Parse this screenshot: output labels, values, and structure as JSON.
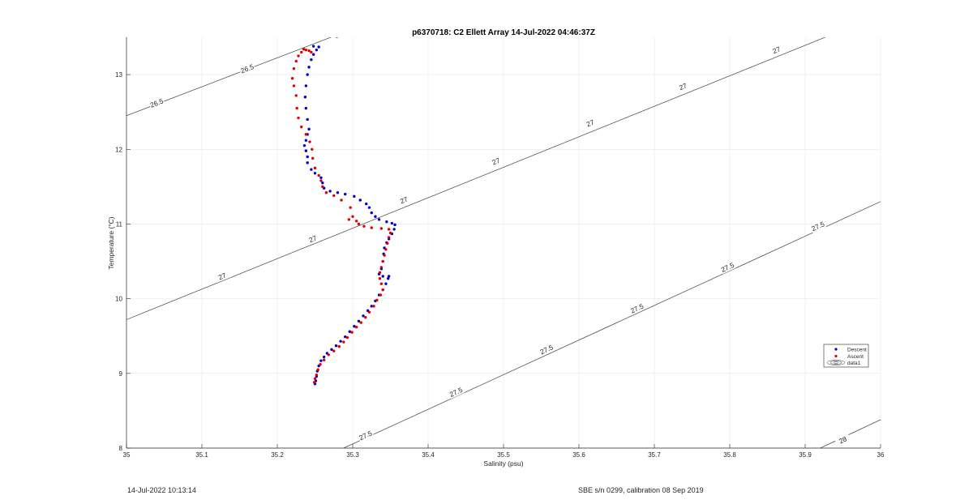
{
  "chart_data": {
    "type": "scatter",
    "title": "p6370718: C2 Ellett Array 14-Jul-2022 04:46:37Z",
    "xlabel": "Salinity (psu)",
    "ylabel": "Temperature (°C)",
    "xlim": [
      35,
      36
    ],
    "ylim": [
      8,
      13.5
    ],
    "grid": true,
    "x_ticks": [
      "35",
      "35.1",
      "35.2",
      "35.3",
      "35.4",
      "35.5",
      "35.6",
      "35.7",
      "35.8",
      "35.9",
      "36"
    ],
    "y_ticks": [
      "8",
      "9",
      "10",
      "11",
      "12",
      "13"
    ],
    "legend": {
      "placement": "right",
      "entries": [
        "Descent",
        "Ascent",
        "data1"
      ]
    },
    "contours": [
      {
        "level": 26.5,
        "points": [
          [
            35.0,
            12.45
          ],
          [
            35.4,
            14.0
          ]
        ],
        "labels": [
          [
            35.04,
            12.62
          ],
          [
            35.16,
            13.08
          ],
          [
            35.285,
            13.55
          ]
        ]
      },
      {
        "level": 27,
        "points": [
          [
            35.0,
            9.72
          ],
          [
            36.0,
            13.8
          ]
        ],
        "labels": [
          [
            35.127,
            10.3
          ],
          [
            35.247,
            10.8
          ],
          [
            35.368,
            11.32
          ],
          [
            35.49,
            11.84
          ],
          [
            35.615,
            12.35
          ],
          [
            35.738,
            12.84
          ],
          [
            35.862,
            13.33
          ],
          [
            35.985,
            13.75
          ]
        ]
      },
      {
        "level": 27.5,
        "points": [
          [
            35.288,
            8.0
          ],
          [
            36.0,
            11.3
          ]
        ],
        "labels": [
          [
            35.317,
            8.17
          ],
          [
            35.437,
            8.75
          ],
          [
            35.557,
            9.32
          ],
          [
            35.677,
            9.87
          ],
          [
            35.797,
            10.42
          ],
          [
            35.917,
            10.97
          ]
        ]
      },
      {
        "level": 28,
        "points": [
          [
            35.92,
            8.0
          ],
          [
            36.0,
            8.38
          ]
        ],
        "labels": [
          [
            35.95,
            8.11
          ]
        ]
      }
    ],
    "series": [
      {
        "name": "Descent",
        "color": "#0000cc",
        "points": [
          [
            35.25,
            8.86
          ],
          [
            35.251,
            8.9
          ],
          [
            35.252,
            8.96
          ],
          [
            35.253,
            9.03
          ],
          [
            35.255,
            9.1
          ],
          [
            35.258,
            9.17
          ],
          [
            35.262,
            9.22
          ],
          [
            35.266,
            9.27
          ],
          [
            35.272,
            9.32
          ],
          [
            35.278,
            9.37
          ],
          [
            35.284,
            9.43
          ],
          [
            35.29,
            9.49
          ],
          [
            35.296,
            9.56
          ],
          [
            35.302,
            9.63
          ],
          [
            35.308,
            9.7
          ],
          [
            35.314,
            9.77
          ],
          [
            35.32,
            9.84
          ],
          [
            35.325,
            9.9
          ],
          [
            35.33,
            9.97
          ],
          [
            35.335,
            10.05
          ],
          [
            35.34,
            10.12
          ],
          [
            35.344,
            10.2
          ],
          [
            35.347,
            10.27
          ],
          [
            35.348,
            10.3
          ],
          [
            35.34,
            10.3
          ],
          [
            35.335,
            10.33
          ],
          [
            35.338,
            10.4
          ],
          [
            35.34,
            10.5
          ],
          [
            35.341,
            10.6
          ],
          [
            35.342,
            10.68
          ],
          [
            35.345,
            10.75
          ],
          [
            35.348,
            10.8
          ],
          [
            35.352,
            10.87
          ],
          [
            35.355,
            10.93
          ],
          [
            35.356,
            10.99
          ],
          [
            35.352,
            11.01
          ],
          [
            35.345,
            11.03
          ],
          [
            35.335,
            11.06
          ],
          [
            35.33,
            11.1
          ],
          [
            35.325,
            11.15
          ],
          [
            35.322,
            11.22
          ],
          [
            35.318,
            11.27
          ],
          [
            35.31,
            11.32
          ],
          [
            35.302,
            11.37
          ],
          [
            35.29,
            11.4
          ],
          [
            35.28,
            11.42
          ],
          [
            35.27,
            11.44
          ],
          [
            35.262,
            11.48
          ],
          [
            35.26,
            11.55
          ],
          [
            35.258,
            11.62
          ],
          [
            35.25,
            11.68
          ],
          [
            35.245,
            11.73
          ],
          [
            35.24,
            11.82
          ],
          [
            35.24,
            11.9
          ],
          [
            35.238,
            11.98
          ],
          [
            35.236,
            12.05
          ],
          [
            35.238,
            12.12
          ],
          [
            35.24,
            12.2
          ],
          [
            35.242,
            12.27
          ],
          [
            35.24,
            12.4
          ],
          [
            35.238,
            12.55
          ],
          [
            35.237,
            12.7
          ],
          [
            35.238,
            12.85
          ],
          [
            35.24,
            13.0
          ],
          [
            35.242,
            13.1
          ],
          [
            35.245,
            13.2
          ],
          [
            35.248,
            13.27
          ],
          [
            35.252,
            13.33
          ],
          [
            35.255,
            13.37
          ],
          [
            35.248,
            13.38
          ]
        ]
      },
      {
        "name": "Ascent",
        "color": "#e00000",
        "points": [
          [
            35.249,
            8.88
          ],
          [
            35.25,
            8.93
          ],
          [
            35.252,
            8.98
          ],
          [
            35.254,
            9.05
          ],
          [
            35.257,
            9.12
          ],
          [
            35.262,
            9.18
          ],
          [
            35.268,
            9.25
          ],
          [
            35.275,
            9.3
          ],
          [
            35.282,
            9.36
          ],
          [
            35.288,
            9.42
          ],
          [
            35.293,
            9.48
          ],
          [
            35.299,
            9.55
          ],
          [
            35.305,
            9.62
          ],
          [
            35.311,
            9.68
          ],
          [
            35.317,
            9.75
          ],
          [
            35.322,
            9.82
          ],
          [
            35.328,
            9.9
          ],
          [
            35.332,
            9.98
          ],
          [
            35.337,
            10.05
          ],
          [
            35.34,
            10.12
          ],
          [
            35.338,
            10.2
          ],
          [
            35.336,
            10.27
          ],
          [
            35.336,
            10.35
          ],
          [
            35.338,
            10.42
          ],
          [
            35.34,
            10.5
          ],
          [
            35.342,
            10.58
          ],
          [
            35.344,
            10.66
          ],
          [
            35.346,
            10.74
          ],
          [
            35.348,
            10.82
          ],
          [
            35.35,
            10.88
          ],
          [
            35.348,
            10.93
          ],
          [
            35.338,
            10.94
          ],
          [
            35.325,
            10.95
          ],
          [
            35.315,
            10.97
          ],
          [
            35.308,
            11.0
          ],
          [
            35.305,
            11.04
          ],
          [
            35.295,
            11.06
          ],
          [
            35.3,
            11.1
          ],
          [
            35.297,
            11.22
          ],
          [
            35.285,
            11.32
          ],
          [
            35.275,
            11.38
          ],
          [
            35.265,
            11.42
          ],
          [
            35.26,
            11.5
          ],
          [
            35.258,
            11.58
          ],
          [
            35.255,
            11.65
          ],
          [
            35.25,
            11.75
          ],
          [
            35.247,
            11.88
          ],
          [
            35.246,
            12.0
          ],
          [
            35.243,
            12.1
          ],
          [
            35.238,
            12.2
          ],
          [
            35.232,
            12.3
          ],
          [
            35.228,
            12.42
          ],
          [
            35.226,
            12.55
          ],
          [
            35.225,
            12.72
          ],
          [
            35.222,
            12.85
          ],
          [
            35.22,
            12.95
          ],
          [
            35.222,
            13.08
          ],
          [
            35.225,
            13.18
          ],
          [
            35.228,
            13.25
          ],
          [
            35.232,
            13.3
          ],
          [
            35.235,
            13.34
          ],
          [
            35.238,
            13.33
          ],
          [
            35.242,
            13.32
          ],
          [
            35.245,
            13.3
          ]
        ]
      }
    ]
  },
  "footer": {
    "left": "14-Jul-2022 10:13:14",
    "right": "SBE s/n 0299, calibration 08 Sep 2019"
  }
}
